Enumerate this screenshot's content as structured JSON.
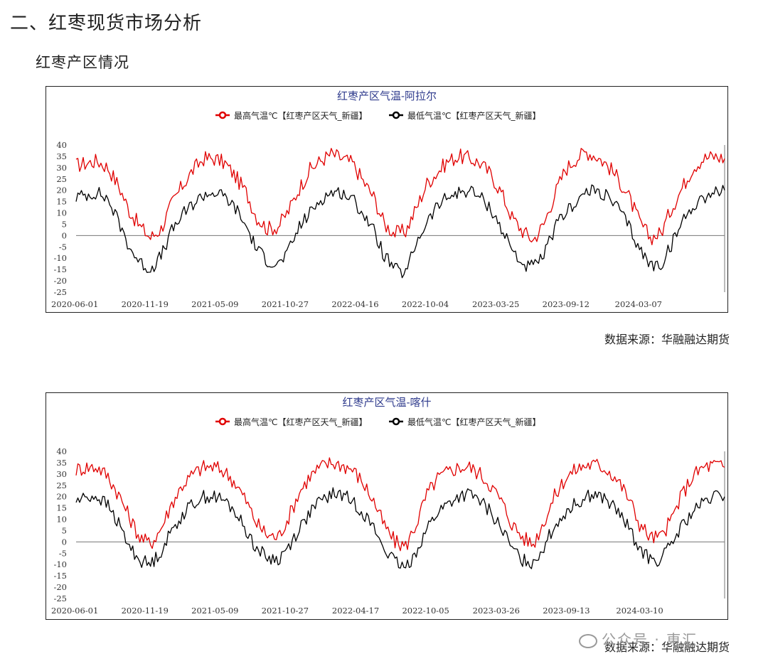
{
  "page": {
    "section_title": "二、红枣现货市场分析",
    "sub_title": "红枣产区情况",
    "watermark": "公众号 · 東汇"
  },
  "chart_data": [
    {
      "type": "line",
      "title": "红枣产区气温-阿拉尔",
      "source": "数据来源：华融融达期货",
      "yticks": [
        40,
        35,
        30,
        25,
        20,
        15,
        10,
        5,
        0,
        -5,
        -10,
        -15,
        -20,
        -25
      ],
      "ylim": [
        -25,
        40
      ],
      "xtick_labels": [
        "2020-06-01",
        "2020-11-19",
        "2021-05-09",
        "2021-10-27",
        "2022-04-16",
        "2022-10-04",
        "2023-03-25",
        "2023-09-12",
        "2024-03-07"
      ],
      "x_range": [
        "2020-06-01",
        "2024-09-30"
      ],
      "grid": false,
      "legend_position": "top-center",
      "series": [
        {
          "name": "最高气温℃【红枣产区天气_新疆】",
          "color": "#e00000",
          "monthly": [
            31,
            32,
            33,
            30,
            22,
            11,
            4,
            -1,
            3,
            14,
            22,
            29,
            34,
            34,
            32,
            26,
            19,
            8,
            3,
            4,
            11,
            21,
            29,
            33,
            36,
            34,
            32,
            24,
            17,
            5,
            1,
            2,
            12,
            23,
            28,
            33,
            35,
            34,
            32,
            27,
            19,
            8,
            2,
            -2,
            5,
            18,
            29,
            34,
            37,
            35,
            31,
            25,
            17,
            6,
            -1,
            1,
            12,
            21,
            30,
            34,
            35,
            34
          ]
        },
        {
          "name": "最低气温℃【红枣产区天气_新疆】",
          "color": "#000000",
          "monthly": [
            17,
            18,
            19,
            16,
            6,
            -5,
            -12,
            -15,
            -9,
            2,
            9,
            14,
            18,
            19,
            17,
            12,
            4,
            -6,
            -11,
            -13,
            -7,
            4,
            10,
            16,
            19,
            19,
            16,
            10,
            2,
            -9,
            -15,
            -17,
            -3,
            6,
            13,
            17,
            19,
            20,
            17,
            12,
            3,
            -6,
            -13,
            -14,
            -9,
            3,
            10,
            15,
            19,
            20,
            17,
            12,
            4,
            -6,
            -13,
            -13,
            -4,
            6,
            13,
            17,
            19,
            20
          ]
        }
      ]
    },
    {
      "type": "line",
      "title": "红枣产区气温-喀什",
      "source": "数据来源：华融融达期货",
      "yticks": [
        40,
        35,
        30,
        25,
        20,
        15,
        10,
        5,
        0,
        -5,
        -10,
        -15,
        -20,
        -25
      ],
      "ylim": [
        -25,
        40
      ],
      "xtick_labels": [
        "2020-06-01",
        "2020-11-19",
        "2021-05-09",
        "2021-10-27",
        "2022-04-17",
        "2022-10-05",
        "2023-03-26",
        "2023-09-13",
        "2024-03-10"
      ],
      "x_range": [
        "2020-06-01",
        "2024-09-30"
      ],
      "grid": false,
      "legend_position": "top-center",
      "series": [
        {
          "name": "最高气温℃【红枣产区天气_新疆】",
          "color": "#e00000",
          "monthly": [
            32,
            33,
            33,
            29,
            21,
            11,
            2,
            -1,
            6,
            17,
            25,
            30,
            33,
            33,
            31,
            26,
            18,
            8,
            3,
            2,
            11,
            22,
            29,
            33,
            35,
            34,
            32,
            26,
            18,
            7,
            0,
            -2,
            8,
            21,
            28,
            31,
            33,
            33,
            30,
            25,
            18,
            8,
            2,
            -1,
            9,
            20,
            28,
            32,
            34,
            34,
            32,
            27,
            19,
            8,
            2,
            2,
            10,
            21,
            29,
            33,
            34,
            33
          ]
        },
        {
          "name": "最低气温℃【红枣产区天气_新疆】",
          "color": "#000000",
          "monthly": [
            18,
            20,
            20,
            16,
            8,
            -2,
            -8,
            -10,
            -4,
            5,
            12,
            17,
            20,
            20,
            18,
            13,
            5,
            -3,
            -7,
            -8,
            -2,
            6,
            13,
            18,
            21,
            21,
            18,
            13,
            6,
            -3,
            -9,
            -12,
            -4,
            6,
            13,
            17,
            20,
            21,
            18,
            13,
            6,
            -3,
            -8,
            -9,
            -2,
            7,
            13,
            17,
            20,
            21,
            18,
            13,
            6,
            -3,
            -8,
            -8,
            -1,
            7,
            13,
            17,
            20,
            20
          ]
        }
      ]
    }
  ]
}
